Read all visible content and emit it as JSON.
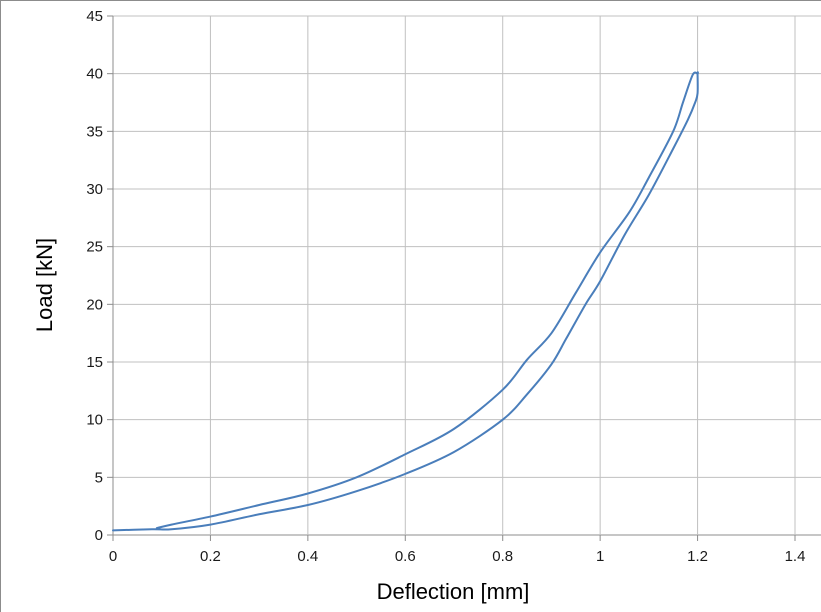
{
  "chart_data": {
    "type": "line",
    "title": "",
    "xlabel": "Deflection [mm]",
    "ylabel": "Load [kN]",
    "xlim": [
      0,
      1.4
    ],
    "ylim": [
      0,
      45
    ],
    "xticks": [
      0,
      0.2,
      0.4,
      0.6,
      0.8,
      1,
      1.2,
      1.4
    ],
    "yticks": [
      0,
      5,
      10,
      15,
      20,
      25,
      30,
      35,
      40,
      45
    ],
    "xtick_labels": [
      "0",
      "0.2",
      "0.4",
      "0.6",
      "0.8",
      "1",
      "1.2",
      "1.4"
    ],
    "ytick_labels": [
      "0",
      "5",
      "10",
      "15",
      "20",
      "25",
      "30",
      "35",
      "40",
      "45"
    ],
    "grid": true,
    "legend": "none",
    "line_color": "#4a7ebb",
    "grid_color": "#c0c0c0",
    "series": [
      {
        "x": [
          0,
          0.08,
          0.12,
          0.2,
          0.3,
          0.4,
          0.5,
          0.6,
          0.7,
          0.8,
          0.85,
          0.9,
          0.93,
          0.97,
          1.0,
          1.05,
          1.1,
          1.15,
          1.18,
          1.195,
          1.2,
          1.2,
          1.2,
          1.19,
          1.17,
          1.15,
          1.1,
          1.06,
          1.0,
          0.95,
          0.9,
          0.85,
          0.8,
          0.7,
          0.6,
          0.5,
          0.4,
          0.3,
          0.2,
          0.12,
          0.09
        ],
        "y": [
          0.4,
          0.5,
          0.5,
          0.9,
          1.8,
          2.6,
          3.8,
          5.3,
          7.2,
          10.0,
          12.2,
          14.8,
          17.0,
          20.0,
          22.0,
          26.0,
          29.5,
          33.5,
          36.0,
          37.5,
          38.3,
          40.0,
          40.0,
          39.9,
          37.5,
          35.0,
          31.0,
          28.0,
          24.5,
          21.0,
          17.5,
          15.2,
          12.6,
          9.2,
          7.0,
          5.0,
          3.6,
          2.6,
          1.6,
          0.9,
          0.6
        ]
      }
    ]
  }
}
